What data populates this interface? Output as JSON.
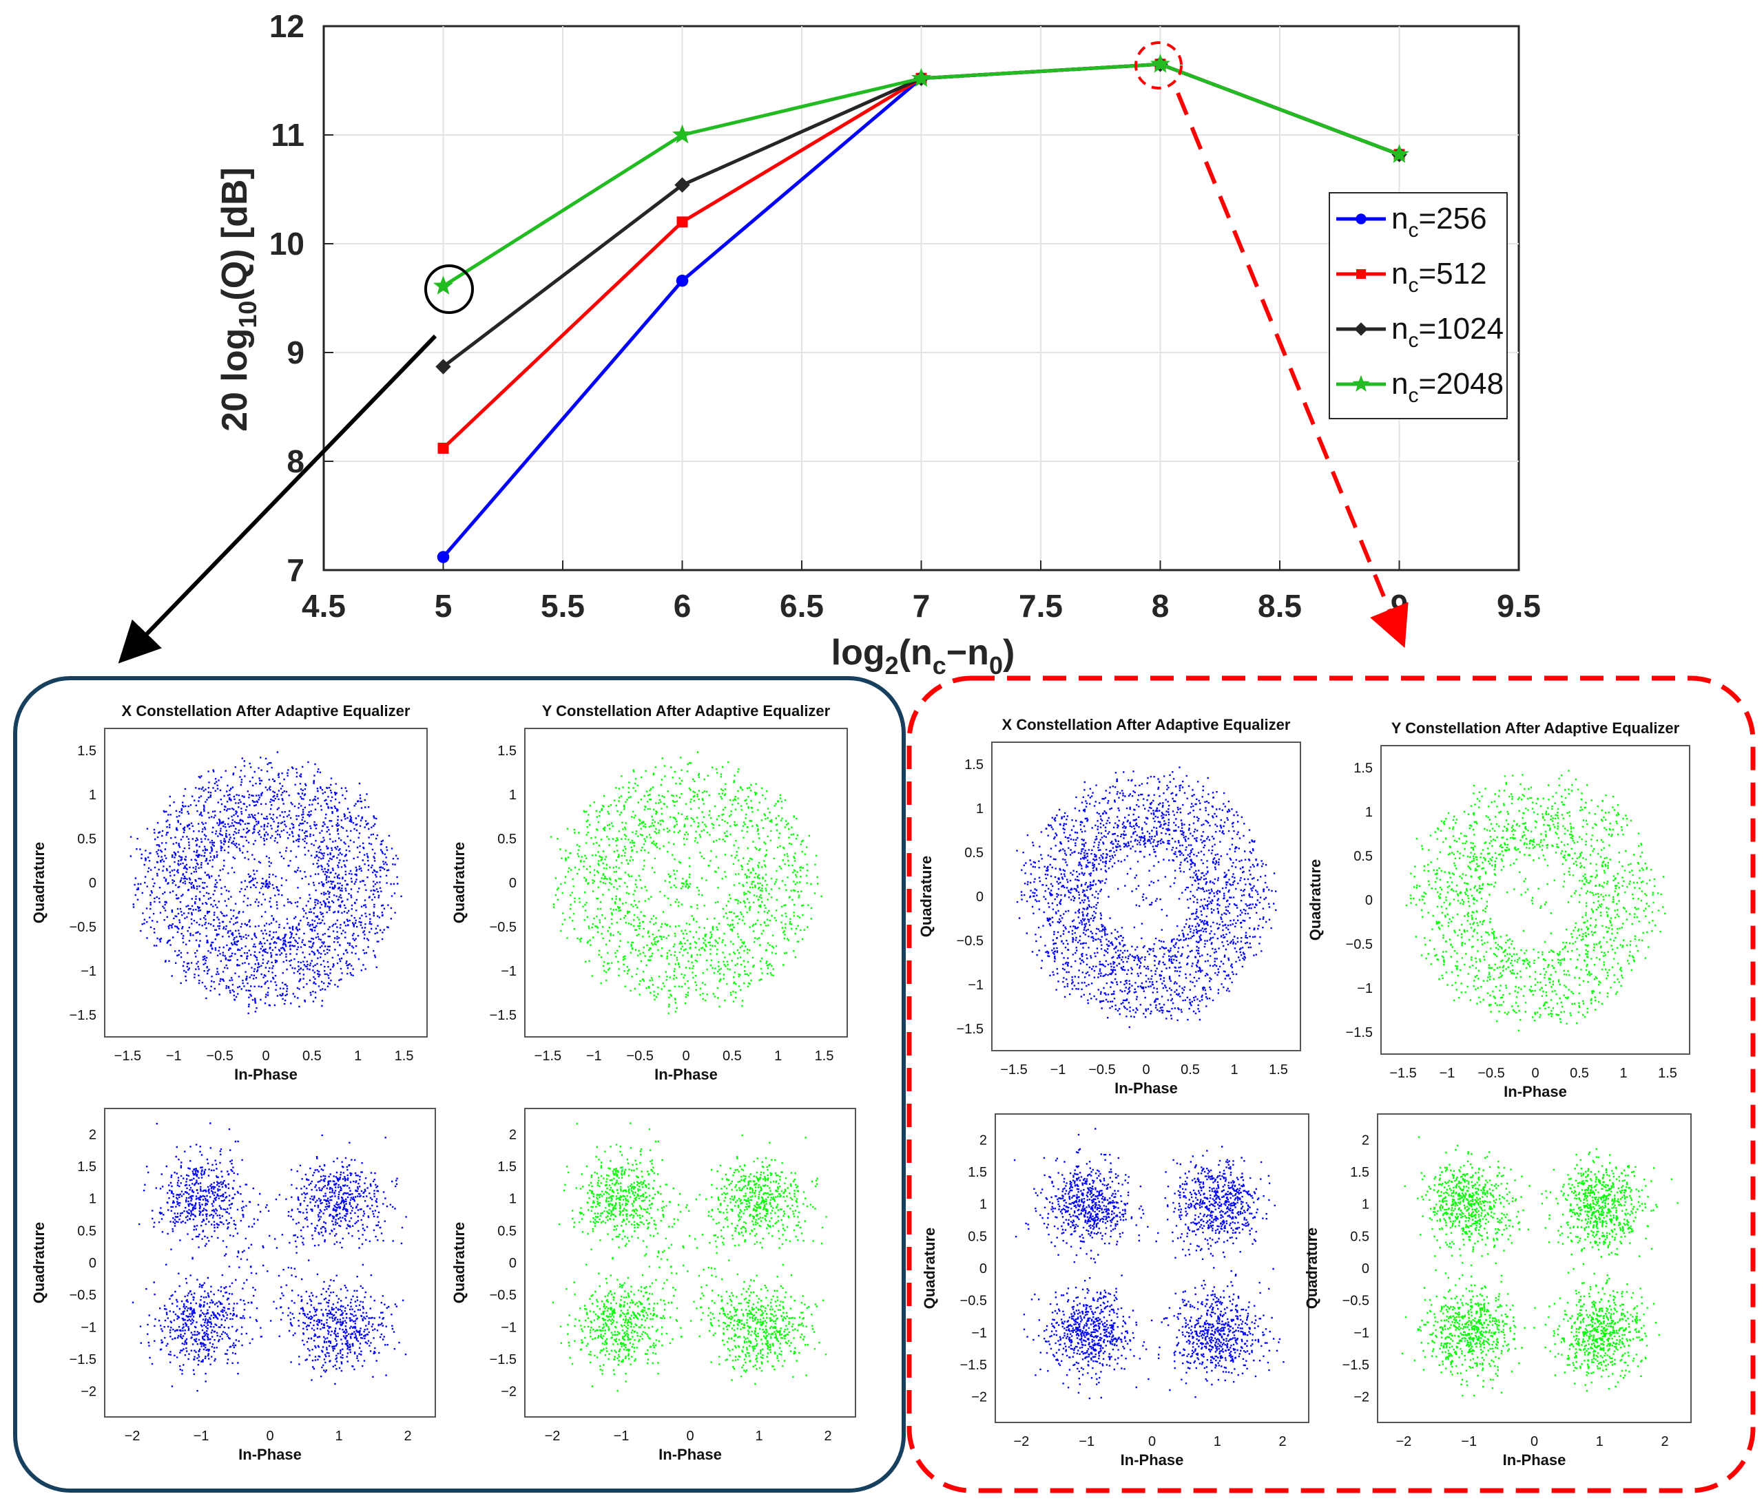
{
  "chart_data": [
    {
      "type": "line",
      "title": "",
      "xlabel": "log2(nc−n0)",
      "ylabel": "20 log10(Q) [dB]",
      "xlim": [
        4.5,
        9.5
      ],
      "ylim": [
        7,
        12
      ],
      "xticks": [
        "4.5",
        "5",
        "5.5",
        "6",
        "6.5",
        "7",
        "7.5",
        "8",
        "8.5",
        "9",
        "9.5"
      ],
      "yticks": [
        "7",
        "8",
        "9",
        "10",
        "11",
        "12"
      ],
      "grid": true,
      "legend_position": "right",
      "x": [
        5,
        6,
        7,
        8,
        9
      ],
      "series": [
        {
          "name": "nc=256",
          "sub": "c",
          "value_text": "=256",
          "color": "#0000ff",
          "marker": "circle",
          "values": [
            7.12,
            9.66,
            11.52,
            11.65,
            10.82
          ]
        },
        {
          "name": "nc=512",
          "sub": "c",
          "value_text": "=512",
          "color": "#ff0000",
          "marker": "square",
          "values": [
            8.12,
            10.2,
            11.52,
            11.65,
            10.82
          ]
        },
        {
          "name": "nc=1024",
          "sub": "c",
          "value_text": "=1024",
          "color": "#262626",
          "marker": "diamond",
          "values": [
            8.87,
            10.54,
            11.52,
            11.65,
            10.82
          ]
        },
        {
          "name": "nc=2048",
          "sub": "c",
          "value_text": "=2048",
          "color": "#22bb22",
          "marker": "star",
          "values": [
            9.61,
            11.0,
            11.52,
            11.65,
            10.82
          ]
        }
      ],
      "annotations": [
        {
          "type": "circle",
          "at": [
            5,
            9.61
          ],
          "color": "#000000",
          "points_to": "left-panel"
        },
        {
          "type": "dashed-circle",
          "at": [
            8,
            11.65
          ],
          "color": "#ff0000",
          "points_to": "right-panel"
        }
      ]
    },
    {
      "type": "scatter",
      "panel": "left",
      "subplots": [
        {
          "title": "X Constellation After Adaptive Equalizer",
          "xlabel": "In-Phase",
          "ylabel": "Quadrature",
          "color": "#0000ff",
          "shape": "ring",
          "xticks": [
            "−1.5",
            "−1",
            "−0.5",
            "0",
            "0.5",
            "1",
            "1.5"
          ],
          "yticks": [
            "1.5",
            "1",
            "0.5",
            "0",
            "−0.5",
            "−1",
            "−1.5"
          ]
        },
        {
          "title": "Y Constellation After Adaptive Equalizer",
          "xlabel": "In-Phase",
          "ylabel": "Quadrature",
          "color": "#00ff00",
          "shape": "ring",
          "xticks": [
            "−1.5",
            "−1",
            "−0.5",
            "0",
            "0.5",
            "1",
            "1.5"
          ],
          "yticks": [
            "1.5",
            "1",
            "0.5",
            "0",
            "−0.5",
            "−1",
            "−1.5"
          ]
        },
        {
          "title": "",
          "xlabel": "In-Phase",
          "ylabel": "Quadrature",
          "color": "#0000ff",
          "shape": "qpsk",
          "xticks": [
            "−2",
            "−1",
            "0",
            "1",
            "2"
          ],
          "yticks": [
            "2",
            "1.5",
            "1",
            "0.5",
            "0",
            "−0.5",
            "−1",
            "−1.5",
            "−2"
          ]
        },
        {
          "title": "",
          "xlabel": "In-Phase",
          "ylabel": "Quadrature",
          "color": "#00ff00",
          "shape": "qpsk",
          "xticks": [
            "−2",
            "−1",
            "0",
            "1",
            "2"
          ],
          "yticks": [
            "2",
            "1.5",
            "1",
            "0.5",
            "0",
            "−0.5",
            "−1",
            "−1.5",
            "−2"
          ]
        }
      ]
    },
    {
      "type": "scatter",
      "panel": "right",
      "subplots": [
        {
          "title": "X Constellation After Adaptive Equalizer",
          "xlabel": "In-Phase",
          "ylabel": "Quadrature",
          "color": "#0000ff",
          "shape": "ring",
          "xticks": [
            "−1.5",
            "−1",
            "−0.5",
            "0",
            "0.5",
            "1",
            "1.5"
          ],
          "yticks": [
            "1.5",
            "1",
            "0.5",
            "0",
            "−0.5",
            "−1",
            "−1.5"
          ]
        },
        {
          "title": "Y Constellation After Adaptive Equalizer",
          "xlabel": "In-Phase",
          "ylabel": "Quadrature",
          "color": "#00ff00",
          "shape": "ring",
          "xticks": [
            "−1.5",
            "−1",
            "−0.5",
            "0",
            "0.5",
            "1",
            "1.5"
          ],
          "yticks": [
            "1.5",
            "1",
            "0.5",
            "0",
            "−0.5",
            "−1",
            "−1.5"
          ]
        },
        {
          "title": "",
          "xlabel": "In-Phase",
          "ylabel": "Quadrature",
          "color": "#0000ff",
          "shape": "qpsk",
          "xticks": [
            "−2",
            "−1",
            "0",
            "1",
            "2"
          ],
          "yticks": [
            "2",
            "1.5",
            "1",
            "0.5",
            "0",
            "−0.5",
            "−1",
            "−1.5",
            "−2"
          ]
        },
        {
          "title": "",
          "xlabel": "In-Phase",
          "ylabel": "Quadrature",
          "color": "#00ff00",
          "shape": "qpsk",
          "xticks": [
            "−2",
            "−1",
            "0",
            "1",
            "2"
          ],
          "yticks": [
            "2",
            "1.5",
            "1",
            "0.5",
            "0",
            "−0.5",
            "−1",
            "−1.5",
            "−2"
          ]
        }
      ]
    }
  ]
}
